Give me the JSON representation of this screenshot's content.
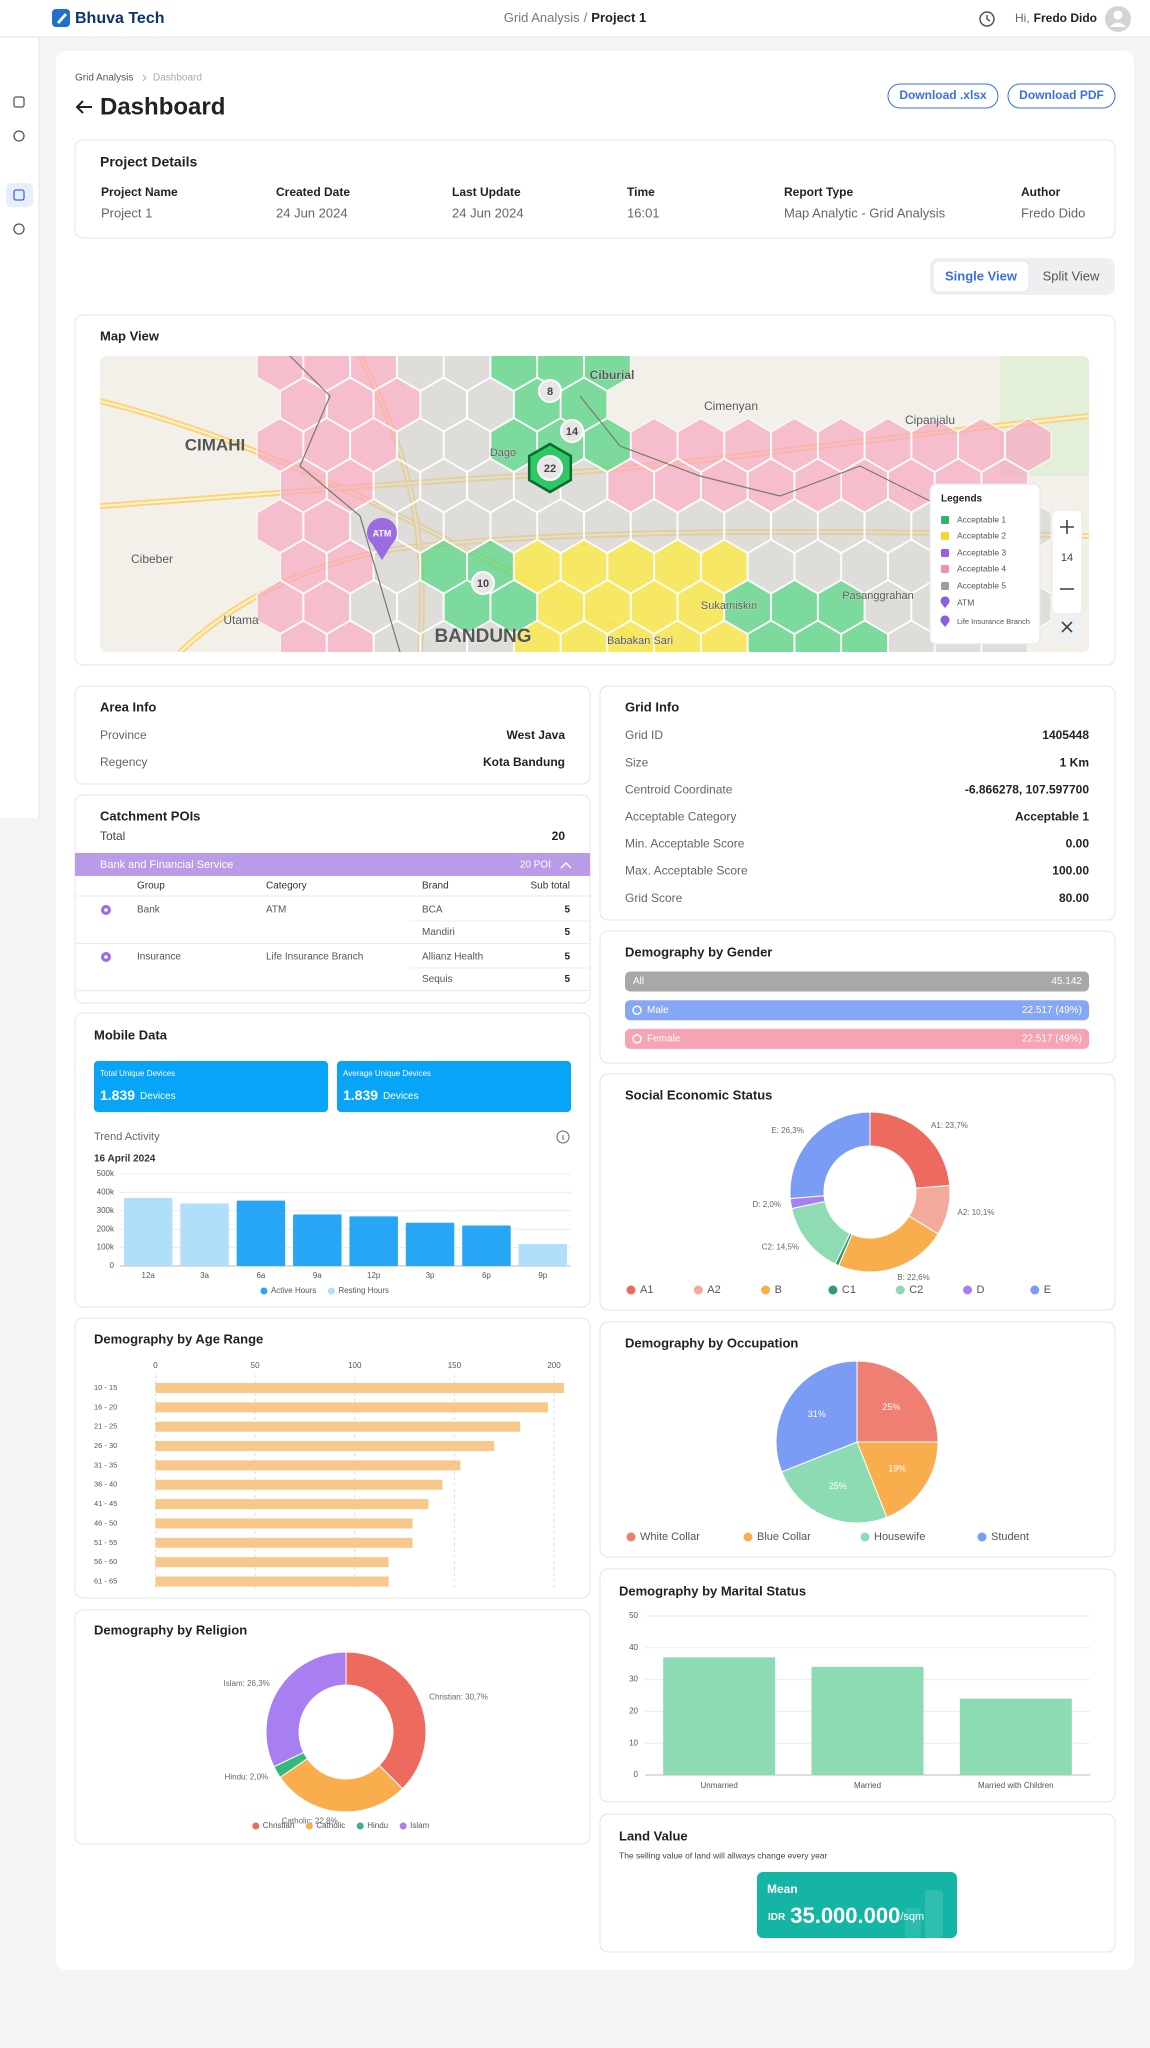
{
  "header": {
    "brand": "Bhuva Tech",
    "crumb": "Grid Analysis",
    "separator": "/",
    "project": "Project 1",
    "greeting": "Hi,",
    "user": "Fredo Dido"
  },
  "breadcrumb": [
    "Grid Analysis",
    "Dashboard"
  ],
  "page_title": "Dashboard",
  "buttons": [
    "Download .xlsx",
    "Download PDF"
  ],
  "project_details": {
    "title": "Project Details",
    "fields": [
      {
        "label": "Project Name",
        "value": "Project 1"
      },
      {
        "label": "Created Date",
        "value": "24 Jun 2024"
      },
      {
        "label": "Last Update",
        "value": "24 Jun 2024"
      },
      {
        "label": "Time",
        "value": "16:01"
      },
      {
        "label": "Report Type",
        "value": "Map Analytic - Grid Analysis"
      },
      {
        "label": "Author",
        "value": "Fredo Dido"
      }
    ]
  },
  "view_toggle": [
    "Single View",
    "Split View"
  ],
  "map": {
    "title": "Map View",
    "places": [
      "Ciburial",
      "Cimenyan",
      "Cipanjalu",
      "CIMAHI",
      "Dago",
      "Cibeber",
      "Utama",
      "BANDUNG",
      "Babakan Sari",
      "Sukamiskin",
      "Pasanggrahan"
    ],
    "clusters": [
      "8",
      "14",
      "22",
      "10"
    ],
    "poi": "ATM",
    "legend_title": "Legends",
    "legend": [
      {
        "name": "Acceptable 1",
        "color": "#2fb36b",
        "marker": "square"
      },
      {
        "name": "Acceptable 2",
        "color": "#f2d530",
        "marker": "square"
      },
      {
        "name": "Acceptable 3",
        "color": "#9b5de5",
        "marker": "square"
      },
      {
        "name": "Acceptable 4",
        "color": "#f48fb1",
        "marker": "square"
      },
      {
        "name": "Acceptable 5",
        "color": "#9e9e9e",
        "marker": "square"
      },
      {
        "name": "ATM",
        "color": "#8e5ce0",
        "marker": "pin"
      },
      {
        "name": "Life Insurance Branch",
        "color": "#8e5ce0",
        "marker": "pin"
      }
    ],
    "zoom": "14"
  },
  "area_info": {
    "title": "Area Info",
    "rows": [
      [
        "Province",
        "West Java"
      ],
      [
        "Regency",
        "Kota Bandung"
      ]
    ]
  },
  "grid_info": {
    "title": "Grid Info",
    "rows": [
      [
        "Grid ID",
        "1405448"
      ],
      [
        "Size",
        "1 Km"
      ],
      [
        "Centroid Coordinate",
        "-6.866278, 107.597700"
      ],
      [
        "Acceptable Category",
        "Acceptable 1"
      ],
      [
        "Min. Acceptable Score",
        "0.00"
      ],
      [
        "Max. Acceptable Score",
        "100.00"
      ],
      [
        "Grid Score",
        "80.00"
      ]
    ]
  },
  "catchment": {
    "title": "Catchment POIs",
    "total_label": "Total",
    "total": 20,
    "group": {
      "name": "Bank and Financial Service",
      "count": "20 POI"
    },
    "columns": [
      "Group",
      "Category",
      "Brand",
      "Sub total"
    ],
    "rows": [
      {
        "group": "Bank",
        "category": "ATM",
        "brands": [
          {
            "name": "BCA",
            "subtotal": 5
          },
          {
            "name": "Mandiri",
            "subtotal": 5
          }
        ]
      },
      {
        "group": "Insurance",
        "category": "Life Insurance Branch",
        "brands": [
          {
            "name": "Allianz Health",
            "subtotal": 5
          },
          {
            "name": "Sequis",
            "subtotal": 5
          }
        ]
      }
    ]
  },
  "mobile": {
    "title": "Mobile Data",
    "cards": [
      {
        "label": "Total Unique Devices",
        "value": "1.839",
        "unit": "Devices"
      },
      {
        "label": "Average Unique Devices",
        "value": "1.839",
        "unit": "Devices"
      }
    ]
  },
  "gender": {
    "title": "Demography by Gender",
    "rows": [
      {
        "label": "All",
        "value": "45.142",
        "color": "#a8a8a8"
      },
      {
        "label": "Male",
        "value": "22.517 (49%)",
        "color": "#86a6f7"
      },
      {
        "label": "Female",
        "value": "22.517 (49%)",
        "color": "#f6a3b3"
      }
    ]
  },
  "land_value": {
    "title": "Land Value",
    "subtitle": "The selling value of land will allways change every year",
    "label": "Mean",
    "currency": "IDR",
    "value": "35.000.000",
    "unit": "/sqm"
  },
  "chart_data": [
    {
      "type": "bar",
      "title": "Trend Activity",
      "subtitle": "16 April 2024",
      "categories": [
        "12a",
        "3a",
        "6a",
        "9a",
        "12p",
        "3p",
        "6p",
        "9p"
      ],
      "series": [
        {
          "name": "Active Hours",
          "color": "#27a6f5",
          "values": [
            null,
            null,
            355000,
            280000,
            270000,
            235000,
            220000,
            null
          ]
        },
        {
          "name": "Resting Hours",
          "color": "#b1defb",
          "values": [
            370000,
            340000,
            null,
            null,
            null,
            null,
            null,
            120000
          ]
        }
      ],
      "ylim": [
        0,
        500000
      ],
      "yticks": [
        0,
        {
          "value": 100000,
          "label": "100k"
        },
        {
          "value": 200000,
          "label": "200k"
        },
        {
          "value": 300000,
          "label": "300k"
        },
        {
          "value": 400000,
          "label": "400k"
        },
        {
          "value": 500000,
          "label": "500k"
        }
      ],
      "grid": true
    },
    {
      "type": "bar",
      "orientation": "horizontal",
      "title": "Demography by Age Range",
      "categories": [
        "10 - 15",
        "16 - 20",
        "21 - 25",
        "26 - 30",
        "31 - 35",
        "36 - 40",
        "41 - 45",
        "46 - 50",
        "51 - 55",
        "56 - 60",
        "61 - 65"
      ],
      "values": [
        205,
        197,
        183,
        170,
        153,
        144,
        137,
        129,
        129,
        117,
        117
      ],
      "color": "#f8c78a",
      "xlim": [
        0,
        205
      ],
      "xticks": [
        0,
        50,
        100,
        150,
        200
      ],
      "grid": true
    },
    {
      "type": "donut",
      "title": "Demography by Religion",
      "categories": [
        "Christian",
        "Catholic",
        "Hindu",
        "Islam"
      ],
      "values": [
        30.7,
        22.8,
        2.0,
        26.3
      ],
      "value_labels": [
        "Christian: 30,7%",
        "Catholic: 22,8%",
        "Hindu: 2,0%",
        "Islam: 26,3%"
      ],
      "colors": [
        "#ec6a5e",
        "#f9ad4d",
        "#33b97a",
        "#a77ff0"
      ]
    },
    {
      "type": "donut",
      "title": "Social Economic Status",
      "categories": [
        "A1",
        "A2",
        "B",
        "C1",
        "C2",
        "D",
        "E"
      ],
      "values": [
        23.7,
        10.1,
        22.6,
        0.8,
        14.5,
        2.0,
        26.3
      ],
      "value_labels": [
        "A1: 23,7%",
        "A2: 10,1%",
        "B: 22,6%",
        null,
        "C2: 14,5%",
        "D: 2,0%",
        "E: 26,3%"
      ],
      "colors": [
        "#ec6a5e",
        "#f3a99c",
        "#f9ad4d",
        "#2f9e6b",
        "#8fdcb4",
        "#a77ff0",
        "#7b9cf5"
      ]
    },
    {
      "type": "pie",
      "title": "Demography by Occupation",
      "categories": [
        "White Collar",
        "Blue Collar",
        "Housewife",
        "Student"
      ],
      "values": [
        25,
        19,
        25,
        31
      ],
      "value_labels": [
        "25%",
        "19%",
        "25%",
        "31%"
      ],
      "colors": [
        "#ef7f72",
        "#f9ad4d",
        "#8ddbb2",
        "#7b9cf5"
      ]
    },
    {
      "type": "bar",
      "title": "Demography by Marital Status",
      "categories": [
        "Unmarried",
        "Married",
        "Married with Children"
      ],
      "values": [
        37,
        34,
        24
      ],
      "color": "#8ddbb2",
      "ylim": [
        0,
        50
      ],
      "yticks": [
        0,
        10,
        20,
        30,
        40,
        50
      ],
      "grid": true
    }
  ]
}
